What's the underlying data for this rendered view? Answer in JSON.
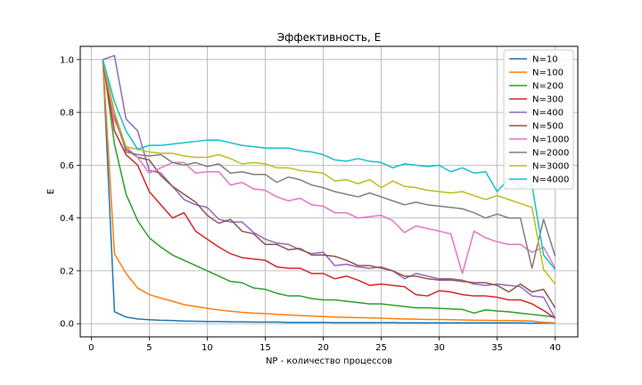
{
  "chart_data": {
    "type": "line",
    "title": "Эффективность, E",
    "xlabel": "NP - количество процессов",
    "ylabel": "E",
    "xlim": [
      -0.95,
      41.95
    ],
    "ylim": [
      -0.05,
      1.05
    ],
    "xticks": [
      0,
      5,
      10,
      15,
      20,
      25,
      30,
      35,
      40
    ],
    "yticks": [
      0.0,
      0.2,
      0.4,
      0.6,
      0.8,
      1.0
    ],
    "xtick_labels": [
      "0",
      "5",
      "10",
      "15",
      "20",
      "25",
      "30",
      "35",
      "40"
    ],
    "ytick_labels": [
      "0.0",
      "0.2",
      "0.4",
      "0.6",
      "0.8",
      "1.0"
    ],
    "grid": true,
    "legend_position": "top-right",
    "x": [
      1,
      2,
      3,
      4,
      5,
      6,
      7,
      8,
      9,
      10,
      11,
      12,
      13,
      14,
      15,
      16,
      17,
      18,
      19,
      20,
      21,
      22,
      23,
      24,
      25,
      26,
      27,
      28,
      29,
      30,
      31,
      32,
      33,
      34,
      35,
      36,
      37,
      38,
      39,
      40
    ],
    "series": [
      {
        "name": "N=10",
        "color": "#1f77b4",
        "values": [
          1.0,
          0.045,
          0.025,
          0.018,
          0.015,
          0.013,
          0.012,
          0.01,
          0.009,
          0.008,
          0.008,
          0.007,
          0.007,
          0.006,
          0.006,
          0.006,
          0.005,
          0.005,
          0.005,
          0.005,
          0.004,
          0.004,
          0.004,
          0.004,
          0.004,
          0.004,
          0.003,
          0.003,
          0.003,
          0.003,
          0.003,
          0.003,
          0.003,
          0.003,
          0.003,
          0.003,
          0.003,
          0.002,
          0.002,
          0.002
        ]
      },
      {
        "name": "N=100",
        "color": "#ff7f0e",
        "values": [
          1.0,
          0.265,
          0.19,
          0.135,
          0.11,
          0.097,
          0.085,
          0.072,
          0.065,
          0.058,
          0.052,
          0.047,
          0.043,
          0.04,
          0.038,
          0.035,
          0.033,
          0.031,
          0.029,
          0.027,
          0.025,
          0.024,
          0.023,
          0.022,
          0.021,
          0.019,
          0.018,
          0.017,
          0.016,
          0.016,
          0.015,
          0.014,
          0.013,
          0.013,
          0.012,
          0.012,
          0.011,
          0.01,
          0.005,
          0.003
        ]
      },
      {
        "name": "N=200",
        "color": "#2ca02c",
        "values": [
          1.0,
          0.68,
          0.49,
          0.39,
          0.325,
          0.29,
          0.26,
          0.24,
          0.22,
          0.2,
          0.18,
          0.16,
          0.155,
          0.135,
          0.13,
          0.115,
          0.105,
          0.105,
          0.095,
          0.09,
          0.09,
          0.085,
          0.08,
          0.075,
          0.075,
          0.07,
          0.065,
          0.06,
          0.06,
          0.058,
          0.056,
          0.054,
          0.04,
          0.052,
          0.048,
          0.045,
          0.04,
          0.035,
          0.03,
          0.025
        ]
      },
      {
        "name": "N=300",
        "color": "#d62728",
        "values": [
          1.0,
          0.73,
          0.64,
          0.6,
          0.5,
          0.45,
          0.4,
          0.42,
          0.35,
          0.32,
          0.29,
          0.265,
          0.25,
          0.245,
          0.24,
          0.215,
          0.21,
          0.21,
          0.19,
          0.19,
          0.17,
          0.18,
          0.165,
          0.145,
          0.15,
          0.145,
          0.14,
          0.11,
          0.105,
          0.125,
          0.12,
          0.11,
          0.105,
          0.105,
          0.1,
          0.09,
          0.09,
          0.075,
          0.05,
          0.02
        ]
      },
      {
        "name": "N=400",
        "color": "#9467bd",
        "values": [
          1.0,
          1.015,
          0.775,
          0.73,
          0.58,
          0.57,
          0.52,
          0.47,
          0.45,
          0.44,
          0.395,
          0.385,
          0.385,
          0.345,
          0.32,
          0.305,
          0.3,
          0.28,
          0.265,
          0.27,
          0.22,
          0.225,
          0.215,
          0.21,
          0.215,
          0.2,
          0.17,
          0.19,
          0.18,
          0.17,
          0.17,
          0.165,
          0.15,
          0.145,
          0.15,
          0.145,
          0.14,
          0.105,
          0.1,
          0.02
        ]
      },
      {
        "name": "N=500",
        "color": "#8c564b",
        "values": [
          1.0,
          0.78,
          0.66,
          0.63,
          0.62,
          0.56,
          0.52,
          0.49,
          0.46,
          0.41,
          0.38,
          0.395,
          0.35,
          0.34,
          0.3,
          0.3,
          0.28,
          0.285,
          0.26,
          0.26,
          0.255,
          0.24,
          0.22,
          0.22,
          0.21,
          0.2,
          0.18,
          0.18,
          0.17,
          0.165,
          0.165,
          0.16,
          0.155,
          0.155,
          0.145,
          0.12,
          0.15,
          0.12,
          0.13,
          0.06
        ]
      },
      {
        "name": "N=1000",
        "color": "#e377c2",
        "values": [
          1.0,
          0.77,
          0.67,
          0.63,
          0.57,
          0.59,
          0.61,
          0.61,
          0.57,
          0.575,
          0.575,
          0.525,
          0.535,
          0.51,
          0.505,
          0.48,
          0.465,
          0.475,
          0.45,
          0.445,
          0.42,
          0.42,
          0.4,
          0.405,
          0.41,
          0.39,
          0.345,
          0.37,
          0.36,
          0.35,
          0.34,
          0.19,
          0.35,
          0.325,
          0.31,
          0.3,
          0.3,
          0.27,
          0.29,
          0.21
        ]
      },
      {
        "name": "N=2000",
        "color": "#7f7f7f",
        "values": [
          1.0,
          0.8,
          0.65,
          0.64,
          0.635,
          0.64,
          0.61,
          0.6,
          0.61,
          0.595,
          0.605,
          0.57,
          0.575,
          0.565,
          0.565,
          0.535,
          0.555,
          0.545,
          0.525,
          0.515,
          0.5,
          0.49,
          0.48,
          0.495,
          0.48,
          0.465,
          0.45,
          0.46,
          0.45,
          0.445,
          0.44,
          0.435,
          0.42,
          0.4,
          0.415,
          0.4,
          0.4,
          0.21,
          0.395,
          0.255
        ]
      },
      {
        "name": "N=3000",
        "color": "#bcbd22",
        "values": [
          1.0,
          0.8,
          0.67,
          0.66,
          0.65,
          0.645,
          0.645,
          0.635,
          0.63,
          0.63,
          0.64,
          0.625,
          0.605,
          0.61,
          0.605,
          0.59,
          0.59,
          0.58,
          0.575,
          0.57,
          0.54,
          0.545,
          0.53,
          0.545,
          0.515,
          0.54,
          0.52,
          0.515,
          0.505,
          0.5,
          0.495,
          0.5,
          0.485,
          0.47,
          0.485,
          0.47,
          0.455,
          0.44,
          0.205,
          0.15
        ]
      },
      {
        "name": "N=4000",
        "color": "#17becf",
        "values": [
          1.0,
          0.84,
          0.73,
          0.66,
          0.675,
          0.675,
          0.68,
          0.685,
          0.69,
          0.695,
          0.695,
          0.685,
          0.675,
          0.67,
          0.665,
          0.665,
          0.665,
          0.655,
          0.65,
          0.64,
          0.62,
          0.615,
          0.625,
          0.615,
          0.61,
          0.59,
          0.605,
          0.6,
          0.595,
          0.6,
          0.575,
          0.59,
          0.57,
          0.575,
          0.5,
          0.55,
          0.515,
          0.525,
          0.26,
          0.205
        ]
      }
    ]
  }
}
